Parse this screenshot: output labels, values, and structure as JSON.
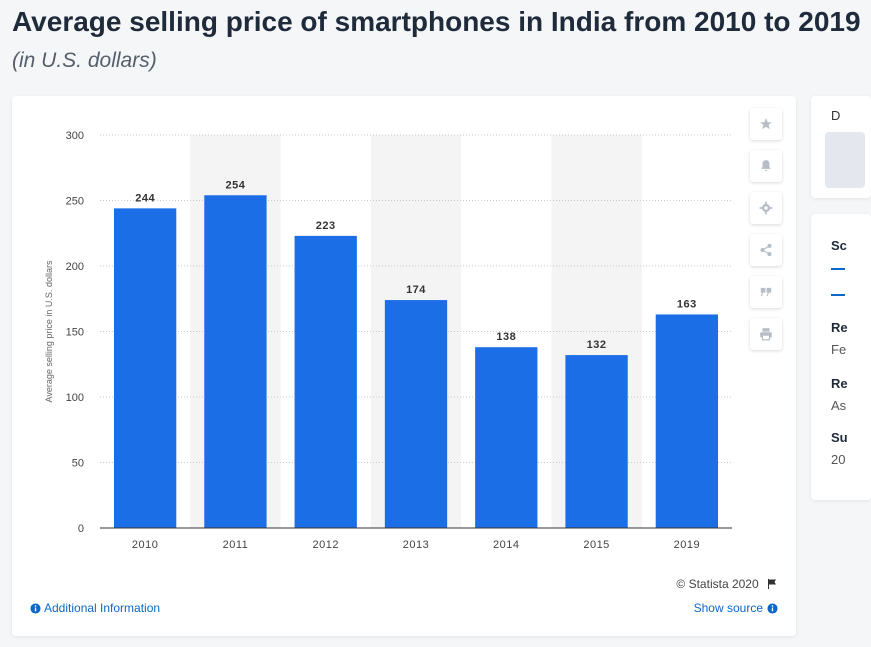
{
  "header": {
    "title": "Average selling price of smartphones in India from 2010 to 2019",
    "subtitle": "(in U.S. dollars)"
  },
  "colors": {
    "bar": "#1b6ee5",
    "band": "#f4f4f4",
    "grid": "#c8c8c8",
    "link": "#0b68c9"
  },
  "chart_data": {
    "type": "bar",
    "title": "Average selling price of smartphones in India from 2010 to 2019",
    "subtitle": "(in U.S. dollars)",
    "categories": [
      "2010",
      "2011",
      "2012",
      "2013",
      "2014",
      "2015",
      "2019"
    ],
    "values": [
      244,
      254,
      223,
      174,
      138,
      132,
      163
    ],
    "xlabel": "",
    "ylabel": "Average selling price in U.S. dollars",
    "ylim": [
      0,
      300
    ],
    "yticks": [
      0,
      50,
      100,
      150,
      200,
      250,
      300
    ],
    "grid": true,
    "data_labels": true
  },
  "toolbar": {
    "items": [
      {
        "name": "favorite",
        "icon": "star-icon"
      },
      {
        "name": "notification",
        "icon": "bell-icon"
      },
      {
        "name": "settings",
        "icon": "gear-icon"
      },
      {
        "name": "share",
        "icon": "share-icon"
      },
      {
        "name": "cite",
        "icon": "quote-icon"
      },
      {
        "name": "print",
        "icon": "print-icon"
      }
    ]
  },
  "footer": {
    "additional_info": "Additional Information",
    "copyright": "© Statista 2020",
    "show_source": "Show source"
  },
  "sidebar": {
    "top_initial": "D",
    "tab_initial": "Sc",
    "sections": [
      {
        "heading": "Re",
        "value": "Fe"
      },
      {
        "heading": "Re",
        "value": "As"
      },
      {
        "heading": "Su",
        "value": "20"
      }
    ]
  }
}
